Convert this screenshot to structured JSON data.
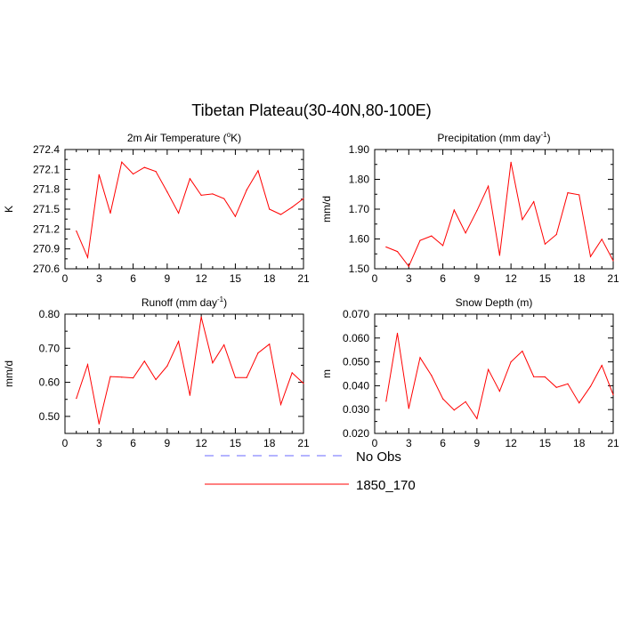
{
  "figure": {
    "title": "Tibetan Plateau(30-40N,80-100E)"
  },
  "colors": {
    "model": "#ff0000",
    "obs": "#6a6aff",
    "axis": "#000000"
  },
  "legend": {
    "placement": "bottom-center",
    "entries": [
      {
        "label": "No Obs",
        "style": "dashed",
        "color": "#6a6aff"
      },
      {
        "label": "1850_170",
        "style": "solid",
        "color": "#ff0000"
      }
    ]
  },
  "chart_data": [
    {
      "type": "line",
      "title": "2m Air Temperature (",
      "title_sup": "o",
      "title_suffix": "K)",
      "ylabel": "K",
      "xlim": [
        0,
        21
      ],
      "ylim": [
        270.6,
        272.4
      ],
      "xticks": [
        0,
        3,
        6,
        9,
        12,
        15,
        18,
        21
      ],
      "yticks": [
        270.6,
        270.9,
        271.2,
        271.5,
        271.8,
        272.1,
        272.4
      ],
      "ytick_labels": [
        "270.6",
        "270.9",
        "271.2",
        "271.5",
        "271.8",
        "272.1",
        "272.4"
      ],
      "series": [
        {
          "x": [
            1,
            2,
            3,
            4,
            5,
            6,
            7,
            8,
            9,
            10,
            11,
            12,
            13,
            14,
            15,
            16,
            17,
            18,
            19,
            20,
            21
          ],
          "y": [
            271.17,
            270.77,
            272.02,
            271.44,
            272.21,
            272.03,
            272.13,
            272.07,
            271.76,
            271.44,
            271.96,
            271.71,
            271.73,
            271.66,
            271.39,
            271.79,
            272.08,
            271.5,
            271.42,
            271.53,
            271.66
          ]
        }
      ]
    },
    {
      "type": "line",
      "title": "Precipitation (mm day",
      "title_sup": "-1",
      "title_suffix": ")",
      "ylabel": "mm/d",
      "xlim": [
        0,
        21
      ],
      "ylim": [
        1.5,
        1.9
      ],
      "xticks": [
        0,
        3,
        6,
        9,
        12,
        15,
        18,
        21
      ],
      "yticks": [
        1.5,
        1.6,
        1.7,
        1.8,
        1.9
      ],
      "ytick_labels": [
        "1.50",
        "1.60",
        "1.70",
        "1.80",
        "1.90"
      ],
      "series": [
        {
          "x": [
            1,
            2,
            3,
            4,
            5,
            6,
            7,
            8,
            9,
            10,
            11,
            12,
            13,
            14,
            15,
            16,
            17,
            18,
            19,
            20,
            21
          ],
          "y": [
            1.573,
            1.558,
            1.508,
            1.595,
            1.61,
            1.578,
            1.697,
            1.62,
            1.695,
            1.777,
            1.545,
            1.857,
            1.665,
            1.725,
            1.583,
            1.615,
            1.755,
            1.748,
            1.541,
            1.599,
            1.527
          ]
        }
      ]
    },
    {
      "type": "line",
      "title": "Runoff (mm day",
      "title_sup": "-1",
      "title_suffix": ")",
      "ylabel": "mm/d",
      "xlim": [
        0,
        21
      ],
      "ylim": [
        0.45,
        0.8
      ],
      "xticks": [
        0,
        3,
        6,
        9,
        12,
        15,
        18,
        21
      ],
      "yticks": [
        0.5,
        0.6,
        0.7,
        0.8
      ],
      "ytick_labels": [
        "0.50",
        "0.60",
        "0.70",
        "0.80"
      ],
      "series": [
        {
          "x": [
            1,
            2,
            3,
            4,
            5,
            6,
            7,
            8,
            9,
            10,
            11,
            12,
            13,
            14,
            15,
            16,
            17,
            18,
            19,
            20,
            21
          ],
          "y": [
            0.553,
            0.652,
            0.478,
            0.617,
            0.615,
            0.613,
            0.662,
            0.608,
            0.648,
            0.72,
            0.562,
            0.792,
            0.657,
            0.71,
            0.614,
            0.614,
            0.686,
            0.712,
            0.535,
            0.628,
            0.597
          ]
        }
      ]
    },
    {
      "type": "line",
      "title": "Snow Depth (m)",
      "title_sup": "",
      "title_suffix": "",
      "ylabel": "m",
      "xlim": [
        0,
        21
      ],
      "ylim": [
        0.02,
        0.07
      ],
      "xticks": [
        0,
        3,
        6,
        9,
        12,
        15,
        18,
        21
      ],
      "yticks": [
        0.02,
        0.03,
        0.04,
        0.05,
        0.06,
        0.07
      ],
      "ytick_labels": [
        "0.020",
        "0.030",
        "0.040",
        "0.050",
        "0.060",
        "0.070"
      ],
      "series": [
        {
          "x": [
            1,
            2,
            3,
            4,
            5,
            6,
            7,
            8,
            9,
            10,
            11,
            12,
            13,
            14,
            15,
            16,
            17,
            18,
            19,
            20,
            21
          ],
          "y": [
            0.0335,
            0.062,
            0.0305,
            0.0518,
            0.0443,
            0.0345,
            0.0298,
            0.0333,
            0.0262,
            0.0468,
            0.0377,
            0.05,
            0.0545,
            0.0438,
            0.0437,
            0.0393,
            0.0408,
            0.0328,
            0.0397,
            0.0485,
            0.0362
          ]
        }
      ]
    }
  ]
}
